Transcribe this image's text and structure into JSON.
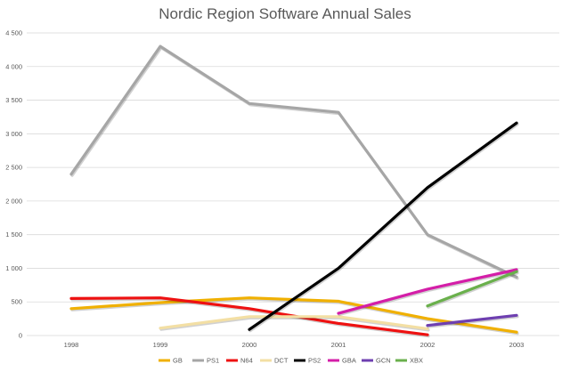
{
  "chart_data": {
    "type": "line",
    "title": "Nordic Region Software Annual Sales",
    "xlabel": "",
    "ylabel": "",
    "categories": [
      "1998",
      "1999",
      "2000",
      "2001",
      "2002",
      "2003"
    ],
    "y_ticks": [
      "0",
      "500",
      "1 000",
      "1 500",
      "2 000",
      "2 500",
      "3 000",
      "3 500",
      "4 000",
      "4 500"
    ],
    "ylim": [
      0,
      4500
    ],
    "grid": true,
    "legend_position": "bottom",
    "series": [
      {
        "name": "GB",
        "color": "#f0b000",
        "values": [
          400,
          490,
          560,
          510,
          250,
          50
        ]
      },
      {
        "name": "PS1",
        "color": "#a6a6a6",
        "values": [
          2400,
          4300,
          3450,
          3320,
          1500,
          870
        ]
      },
      {
        "name": "N64",
        "color": "#ee1111",
        "values": [
          550,
          560,
          400,
          180,
          10,
          null
        ]
      },
      {
        "name": "DCT",
        "color": "#f3dfa4",
        "values": [
          null,
          110,
          280,
          280,
          100,
          null
        ]
      },
      {
        "name": "PS2",
        "color": "#000000",
        "values": [
          null,
          null,
          90,
          1000,
          2200,
          3160
        ]
      },
      {
        "name": "GBA",
        "color": "#d41ea8",
        "values": [
          null,
          null,
          null,
          330,
          690,
          980
        ]
      },
      {
        "name": "GCN",
        "color": "#6e3fb0",
        "values": [
          null,
          null,
          null,
          null,
          150,
          300
        ]
      },
      {
        "name": "XBX",
        "color": "#6ab04c",
        "values": [
          null,
          null,
          null,
          null,
          440,
          950
        ]
      }
    ]
  }
}
